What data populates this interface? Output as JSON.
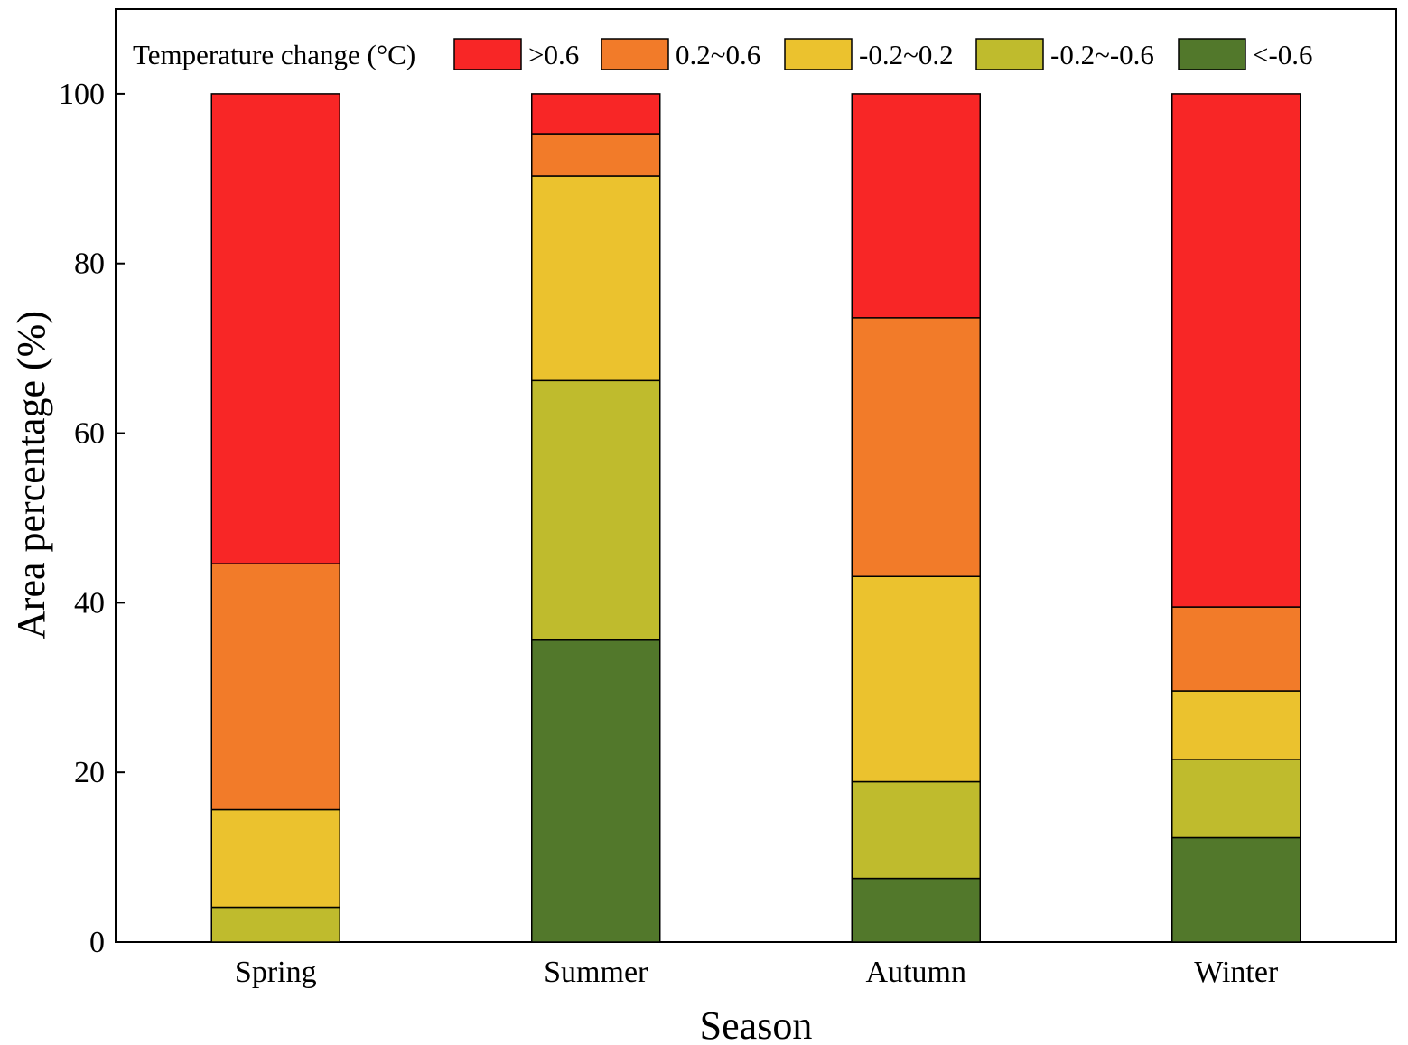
{
  "chart_data": {
    "type": "stacked-bar",
    "xlabel": "Season",
    "ylabel": "Area percentage (%)",
    "ylim": [
      0,
      110
    ],
    "yticks": [
      0,
      20,
      40,
      60,
      80,
      100
    ],
    "legend_title": "Temperature change (°C)",
    "legend_position": "top",
    "categories": [
      "Spring",
      "Summer",
      "Autumn",
      "Winter"
    ],
    "series": [
      {
        "name": "<-0.6",
        "color": "#52782b",
        "values": [
          0.0,
          35.6,
          7.5,
          12.3
        ]
      },
      {
        "name": "-0.2~-0.6",
        "color": "#bfbb2d",
        "values": [
          4.1,
          30.6,
          11.4,
          9.2
        ]
      },
      {
        "name": "-0.2~0.2",
        "color": "#ebc22e",
        "values": [
          11.5,
          24.1,
          24.2,
          8.1
        ]
      },
      {
        "name": "0.2~0.6",
        "color": "#f27b29",
        "values": [
          29.0,
          5.0,
          30.5,
          9.9
        ]
      },
      {
        "name": ">0.6",
        "color": "#f82626",
        "values": [
          55.4,
          4.7,
          26.4,
          60.5
        ]
      }
    ]
  }
}
